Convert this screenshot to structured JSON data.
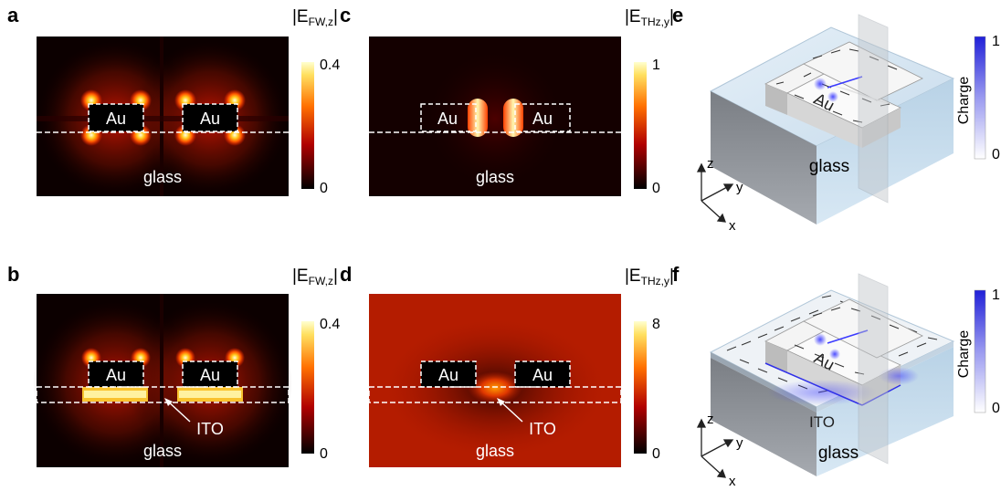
{
  "panels": {
    "a": {
      "letter": "a",
      "cbar_title": "|E",
      "cbar_sub": "FW,z",
      "cbar_close": "|",
      "cbar_max": "0.4",
      "cbar_min": "0",
      "au_left": "Au",
      "au_right": "Au",
      "substrate": "glass"
    },
    "b": {
      "letter": "b",
      "cbar_title": "|E",
      "cbar_sub": "FW,z",
      "cbar_close": "|",
      "cbar_max": "0.4",
      "cbar_min": "0",
      "au_left": "Au",
      "au_right": "Au",
      "substrate": "glass",
      "ito": "ITO"
    },
    "c": {
      "letter": "c",
      "cbar_title": "|E",
      "cbar_sub": "THz,y",
      "cbar_close": "|",
      "cbar_max": "1",
      "cbar_min": "0",
      "au_left": "Au",
      "au_right": "Au",
      "substrate": "glass"
    },
    "d": {
      "letter": "d",
      "cbar_title": "|E",
      "cbar_sub": "THz,y",
      "cbar_close": "|",
      "cbar_max": "8",
      "cbar_min": "0",
      "au_left": "Au",
      "au_right": "Au",
      "substrate": "glass",
      "ito": "ITO"
    },
    "e": {
      "letter": "e",
      "charge_label": "Charge",
      "cbar_max": "1",
      "cbar_min": "0",
      "au": "Au",
      "substrate": "glass",
      "axis_z": "z",
      "axis_y": "y",
      "axis_x": "x"
    },
    "f": {
      "letter": "f",
      "charge_label": "Charge",
      "cbar_max": "1",
      "cbar_min": "0",
      "au": "Au",
      "substrate": "glass",
      "ito": "ITO",
      "axis_z": "z",
      "axis_y": "y",
      "axis_x": "x"
    }
  },
  "colors": {
    "hot_dark": "#120000",
    "hot_red": "#cc1800",
    "hot_orange": "#ff7a00",
    "hot_yellow": "#fff6a0",
    "charge_blue": "#2f2fe0",
    "glass_face": "#d8e8f4"
  }
}
